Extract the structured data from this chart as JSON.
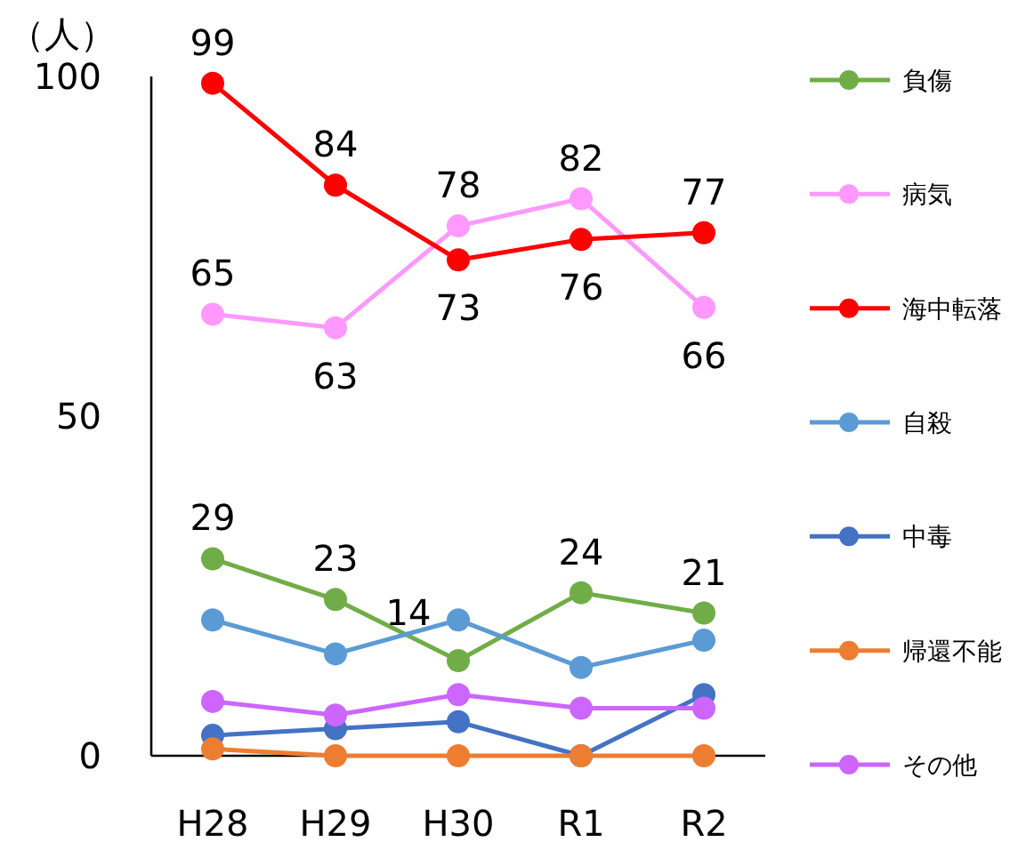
{
  "chart_data": {
    "type": "line",
    "ylabel": "（人）",
    "categories": [
      "H28",
      "H29",
      "H30",
      "R1",
      "R2"
    ],
    "ylim": [
      0,
      100
    ],
    "yticks": [
      0,
      50,
      100
    ],
    "grid": false,
    "legend": "right",
    "marker": "circle",
    "series": [
      {
        "name": "負傷",
        "color": "#70ad47",
        "values": [
          29,
          23,
          14,
          24,
          21
        ],
        "value_labels": [
          "29",
          "23",
          "14",
          "24",
          "21"
        ]
      },
      {
        "name": "病気",
        "color": "#ff99ff",
        "values": [
          65,
          63,
          78,
          82,
          66
        ],
        "value_labels": [
          "65",
          "63",
          "78",
          "82",
          "66"
        ]
      },
      {
        "name": "海中転落",
        "color": "#ff0000",
        "values": [
          99,
          84,
          73,
          76,
          77
        ],
        "value_labels": [
          "99",
          "84",
          "73",
          "76",
          "77"
        ]
      },
      {
        "name": "自殺",
        "color": "#5b9bd5",
        "values": [
          20,
          15,
          20,
          13,
          17
        ]
      },
      {
        "name": "中毒",
        "color": "#4472c4",
        "values": [
          3,
          4,
          5,
          0,
          9
        ]
      },
      {
        "name": "帰還不能",
        "color": "#ed7d31",
        "values": [
          1,
          0,
          0,
          0,
          0
        ]
      },
      {
        "name": "その他",
        "color": "#cc66ff",
        "values": [
          8,
          6,
          9,
          7,
          7
        ]
      }
    ]
  }
}
